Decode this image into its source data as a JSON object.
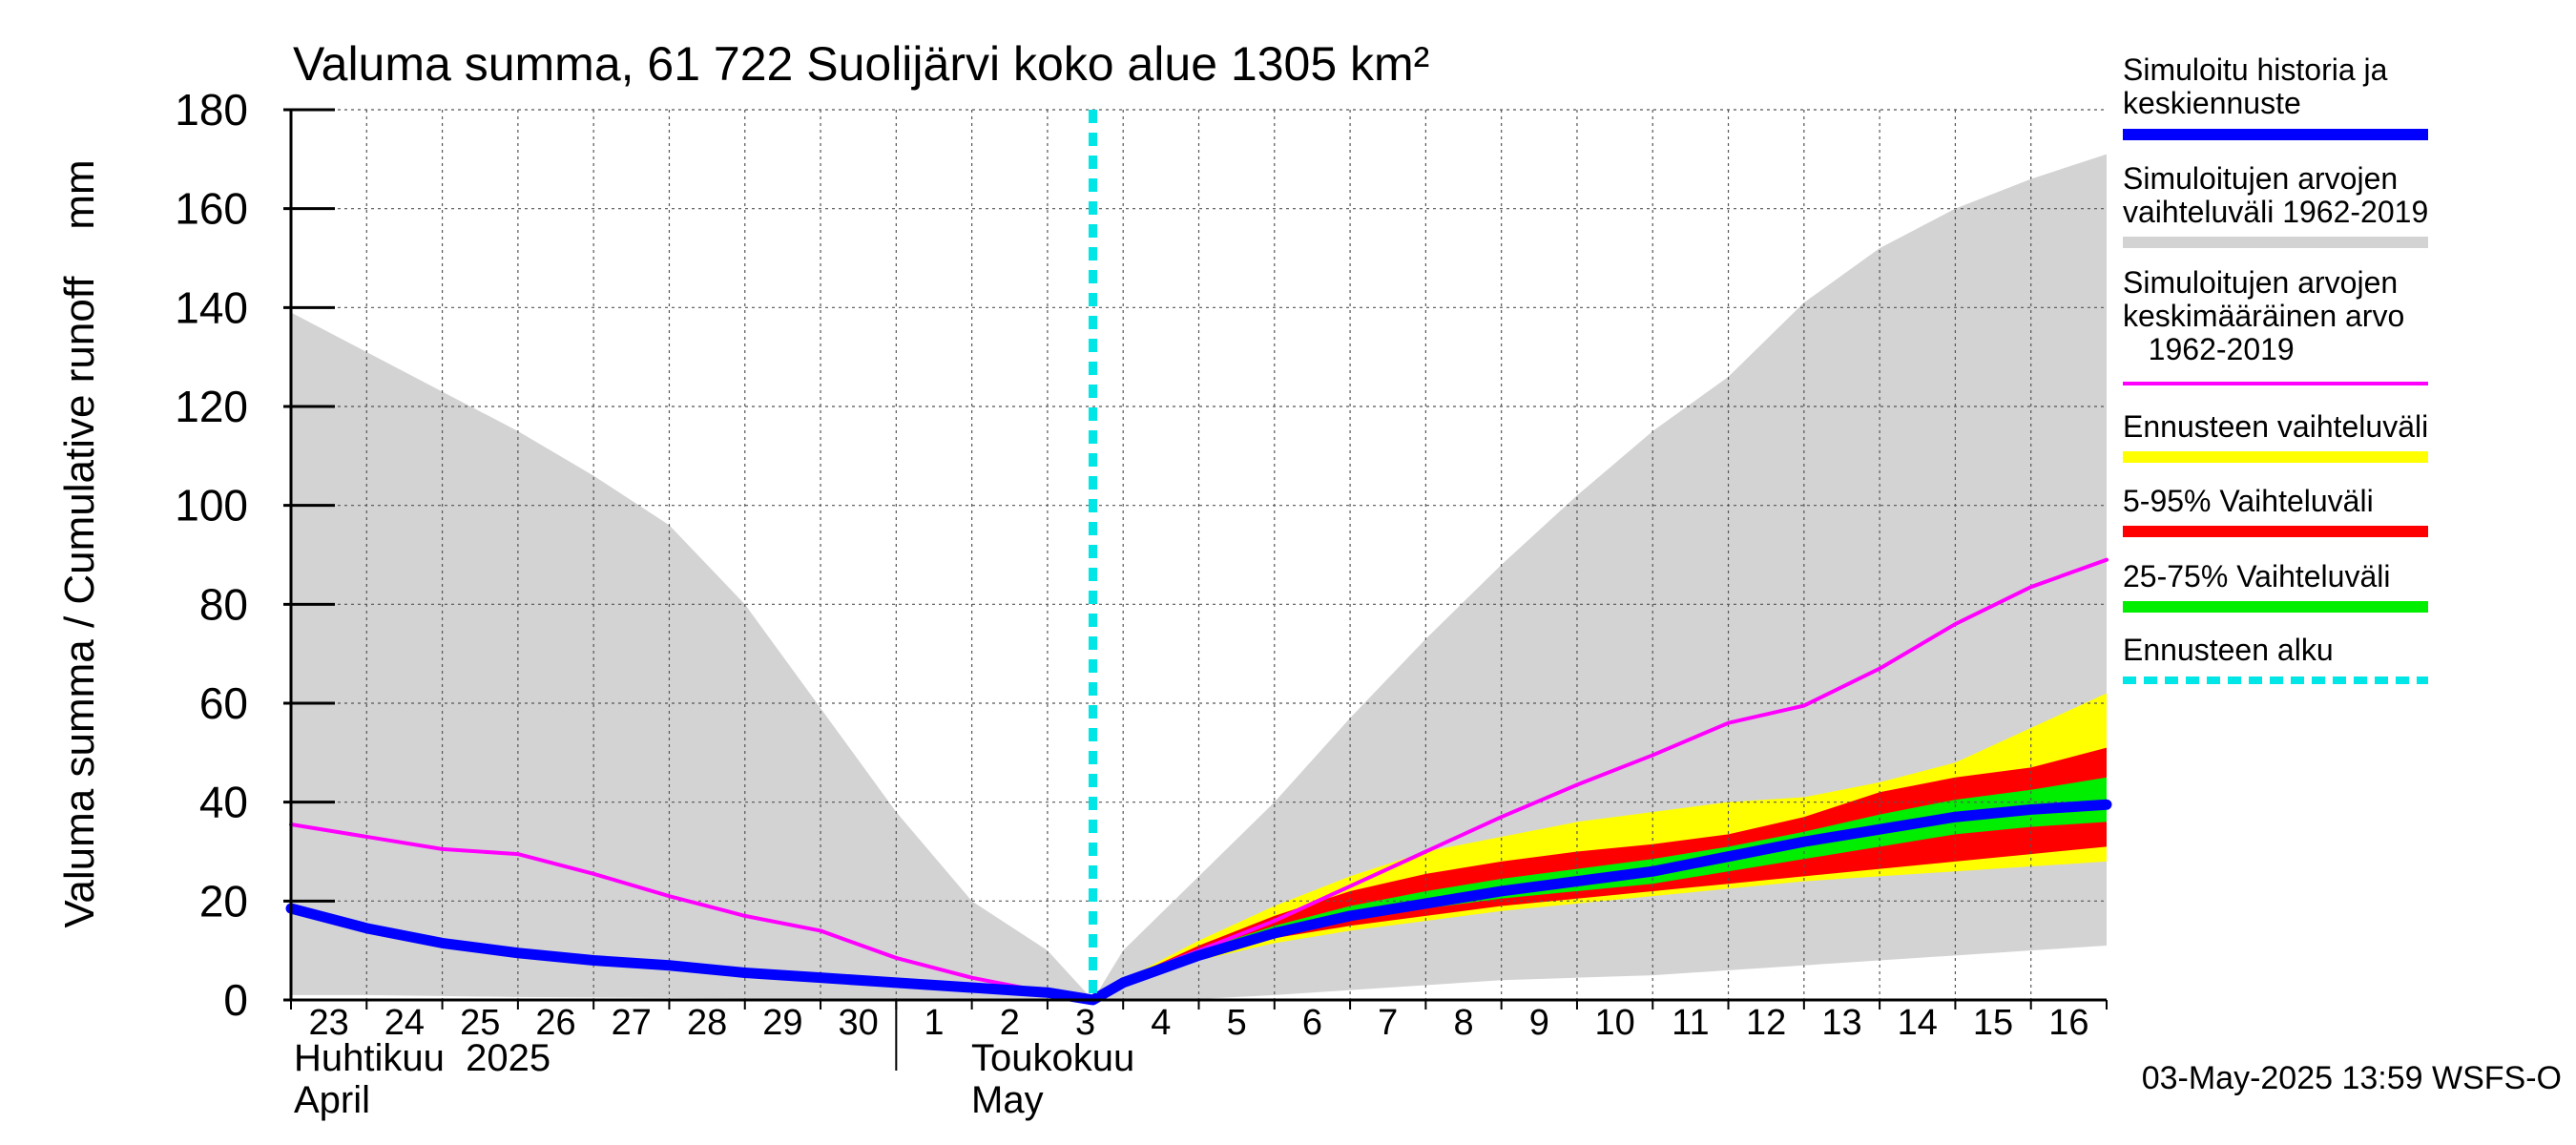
{
  "chart_data": {
    "type": "area",
    "title": "Valuma summa, 61 722 Suolijärvi koko alue 1305 km²",
    "ylabel": "Valuma summa / Cumulative runoff    mm",
    "ylim": [
      0,
      180
    ],
    "yticks": [
      0,
      20,
      40,
      60,
      80,
      100,
      120,
      140,
      160,
      180
    ],
    "day_labels": [
      "23",
      "24",
      "25",
      "26",
      "27",
      "28",
      "29",
      "30",
      "1",
      "2",
      "3",
      "4",
      "5",
      "6",
      "7",
      "8",
      "9",
      "10",
      "11",
      "12",
      "13",
      "14",
      "15",
      "16"
    ],
    "month_labels": {
      "april_fi": "Huhtikuu  2025",
      "april_en": "April",
      "may_fi": "Toukokuu",
      "may_en": "May"
    },
    "forecast_start_day": 10.6,
    "x_range": [
      0,
      24
    ],
    "series": [
      {
        "name": "Simuloitujen arvojen vaihteluväli 1962-2019",
        "color": "#d3d3d3",
        "kind": "band",
        "x": [
          0,
          1,
          2,
          3,
          4,
          5,
          6,
          7,
          8,
          9,
          10,
          10.6,
          11,
          12,
          13,
          14,
          15,
          16,
          17,
          18,
          19,
          20,
          21,
          22,
          23,
          24
        ],
        "lower": [
          1,
          1,
          0.8,
          0.6,
          0.5,
          0.4,
          0.3,
          0.2,
          0.1,
          0.05,
          0,
          0,
          0,
          0.2,
          1,
          2,
          3,
          4,
          4.5,
          5,
          6,
          7,
          8,
          9,
          10,
          11
        ],
        "upper": [
          139,
          131,
          123,
          115,
          106,
          96,
          80,
          59,
          38,
          20,
          10,
          0,
          10,
          25,
          40,
          57,
          73,
          88,
          102,
          115,
          126,
          141,
          152,
          160,
          166,
          171
        ]
      },
      {
        "name": "Ennusteen vaihteluväli",
        "color": "#ffff00",
        "kind": "band",
        "x": [
          10.6,
          11,
          12,
          13,
          14,
          15,
          16,
          17,
          18,
          19,
          20,
          21,
          22,
          23,
          24
        ],
        "lower": [
          0,
          3,
          8,
          11.5,
          14,
          16,
          18,
          19.5,
          21,
          22.5,
          24,
          25,
          26,
          27,
          28
        ],
        "upper": [
          0,
          4,
          12,
          19,
          25,
          30,
          33,
          36,
          38,
          40,
          41,
          44,
          48,
          55,
          62
        ]
      },
      {
        "name": "5-95% Vaihteluväli",
        "color": "#ff0000",
        "kind": "band",
        "x": [
          10.6,
          11,
          12,
          13,
          14,
          15,
          16,
          17,
          18,
          19,
          20,
          21,
          22,
          23,
          24
        ],
        "lower": [
          0,
          3,
          8.5,
          12.5,
          15,
          17,
          19,
          20.5,
          22,
          23.5,
          25,
          26.5,
          28,
          29.5,
          31
        ],
        "upper": [
          0,
          4,
          11,
          17,
          22,
          25.5,
          28,
          30,
          31.5,
          33.5,
          37,
          42,
          45,
          47,
          51
        ]
      },
      {
        "name": "25-75% Vaihteluväli",
        "color": "#00ee00",
        "kind": "band",
        "x": [
          10.6,
          11,
          12,
          13,
          14,
          15,
          16,
          17,
          18,
          19,
          20,
          21,
          22,
          23,
          24
        ],
        "lower": [
          0,
          3.5,
          9.5,
          13.5,
          16.5,
          18.5,
          20.5,
          22,
          23.5,
          26,
          28.5,
          31,
          33.5,
          35,
          36
        ],
        "upper": [
          0,
          4,
          10,
          15,
          19,
          22,
          24.5,
          26.5,
          28.5,
          31,
          34,
          37.5,
          40.5,
          42.5,
          45
        ]
      },
      {
        "name": "Simuloitujen arvojen keskimääräinen arvo 1962-2019",
        "color": "#ff00ff",
        "kind": "line",
        "x": [
          0,
          1,
          2,
          3,
          4,
          5,
          6,
          7,
          8,
          9,
          10,
          10.6,
          11,
          12,
          13,
          14,
          15,
          16,
          17,
          18,
          19,
          20,
          21,
          22,
          23,
          24
        ],
        "values": [
          35.5,
          33,
          30.5,
          29.5,
          25.5,
          21,
          17,
          14,
          8.5,
          4.5,
          1.5,
          0,
          4,
          10,
          16,
          23,
          30,
          37,
          43.5,
          49.5,
          56,
          59.5,
          67,
          76,
          83.5,
          89
        ]
      },
      {
        "name": "Simuloitu historia ja keskiennuste",
        "color": "#0000ff",
        "kind": "line",
        "x": [
          0,
          1,
          2,
          3,
          4,
          5,
          6,
          7,
          8,
          9,
          10,
          10.6,
          11,
          12,
          13,
          14,
          15,
          16,
          17,
          18,
          19,
          20,
          21,
          22,
          23,
          24
        ],
        "values": [
          18.5,
          14.5,
          11.5,
          9.5,
          8,
          7,
          5.5,
          4.5,
          3.5,
          2.5,
          1.5,
          0,
          3.5,
          9,
          13.5,
          17,
          19.5,
          22,
          24,
          26,
          29,
          32,
          34.5,
          37,
          38.5,
          39.5
        ]
      }
    ],
    "legend": [
      {
        "label": "Simuloitu historia ja keskiennuste",
        "color": "#0000ff",
        "style": "solid"
      },
      {
        "label": "Simuloitujen arvojen vaihteluväli 1962-2019",
        "color": "#d3d3d3",
        "style": "solid"
      },
      {
        "label": "Simuloitujen arvojen keskimääräinen arvo 1962-2019",
        "color": "#ff00ff",
        "style": "thin"
      },
      {
        "label": "Ennusteen vaihteluväli",
        "color": "#ffff00",
        "style": "solid"
      },
      {
        "label": "5-95% Vaihteluväli",
        "color": "#ff0000",
        "style": "solid"
      },
      {
        "label": "25-75% Vaihteluväli",
        "color": "#00ee00",
        "style": "solid"
      },
      {
        "label": "Ennusteen alku",
        "color": "#00e5e5",
        "style": "dashed"
      }
    ],
    "legend_text": {
      "item1": [
        "Simuloitu historia ja",
        "keskiennuste"
      ],
      "item2": [
        "Simuloitujen arvojen",
        "vaihteluväli 1962-2019"
      ],
      "item3": [
        "Simuloitujen arvojen",
        "keskimääräinen arvo",
        "   1962-2019"
      ],
      "item4": [
        "Ennusteen vaihteluväli"
      ],
      "item5": [
        "5-95% Vaihteluväli"
      ],
      "item6": [
        "25-75% Vaihteluväli"
      ],
      "item7": [
        "Ennusteen alku"
      ]
    },
    "footer": "03-May-2025 13:59 WSFS-O"
  }
}
